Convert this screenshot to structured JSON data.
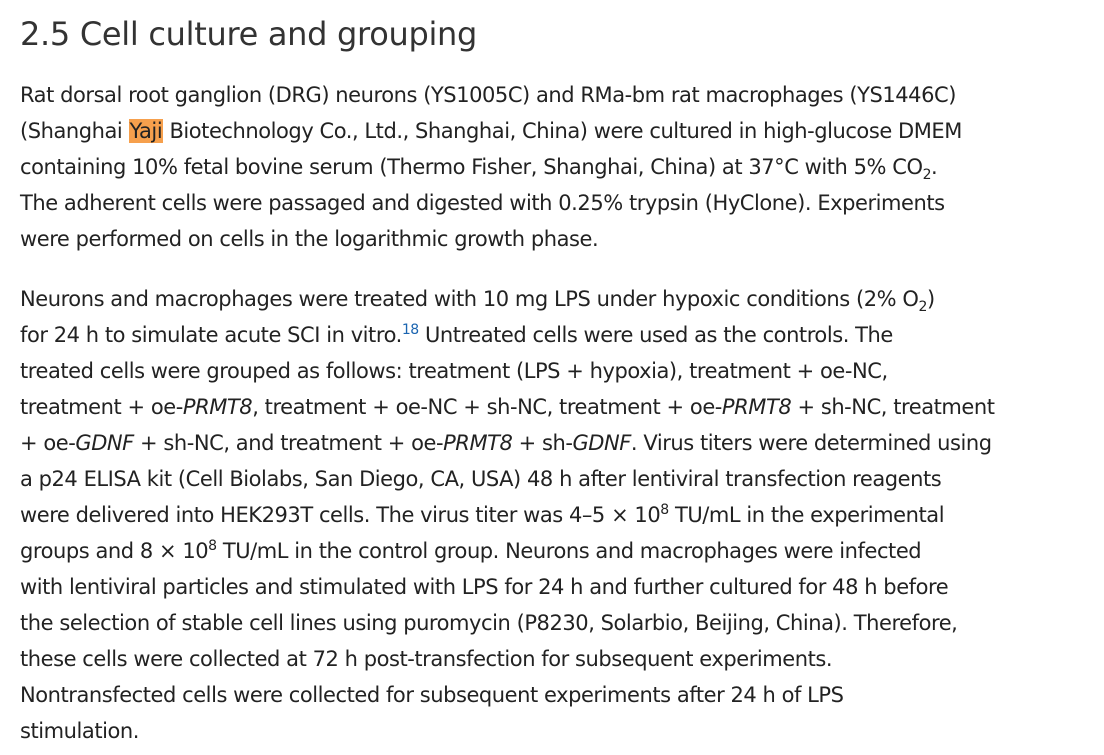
{
  "title": "2.5 Cell culture and grouping",
  "paragraphs": [
    [
      [
        "Rat dorsal root ganglion (DRG) neurons (YS1005C) and RMa-bm rat macrophages (YS1446C)"
      ],
      [
        "(Shanghai ",
        "Yaji",
        " Biotechnology Co., Ltd., Shanghai, China) were cultured in high-glucose DMEM"
      ],
      [
        "containing 10% fetal bovine serum (Thermo Fisher, Shanghai, China) at 37°C with 5% CO",
        "2",
        "."
      ],
      [
        "The adherent cells were passaged and digested with 0.25% trypsin (HyClone). Experiments"
      ],
      [
        "were performed on cells in the logarithmic growth phase."
      ]
    ],
    [
      [
        "Neurons and macrophages were treated with 10 mg LPS under hypoxic conditions (2% O",
        "2",
        ")"
      ],
      [
        "for 24 h to simulate acute SCI in vitro.",
        "18",
        " Untreated cells were used as the controls. The"
      ],
      [
        "treated cells were grouped as follows: treatment (LPS + hypoxia), treatment + oe-NC,"
      ],
      [
        "treatment + oe-",
        "PRMT8",
        ", treatment + oe-NC + sh-NC, treatment + oe-",
        "PRMT8",
        " + sh-NC, treatment"
      ],
      [
        "+ oe-",
        "GDNF",
        " + sh-NC, and treatment + oe-",
        "PRMT8",
        " + sh-",
        "GDNF",
        ". Virus titers were determined using"
      ],
      [
        "a p24 ELISA kit (Cell Biolabs, San Diego, CA, USA) 48 h after lentiviral transfection reagents"
      ],
      [
        "were delivered into HEK293T cells. The virus titer was 4–5 × 10",
        "8",
        " TU/mL in the experimental"
      ],
      [
        "groups and 8 × 10",
        "8",
        " TU/mL in the control group. Neurons and macrophages were infected"
      ],
      [
        "with lentiviral particles and stimulated with LPS for 24 h and further cultured for 48 h before"
      ],
      [
        "the selection of stable cell lines using puromycin (P8230, Solarbio, Beijing, China). Therefore,"
      ],
      [
        "these cells were collected at 72 h post-transfection for subsequent experiments."
      ],
      [
        "Nontransfected cells were collected for subsequent experiments after 24 h of LPS"
      ],
      [
        "stimulation."
      ]
    ]
  ]
}
